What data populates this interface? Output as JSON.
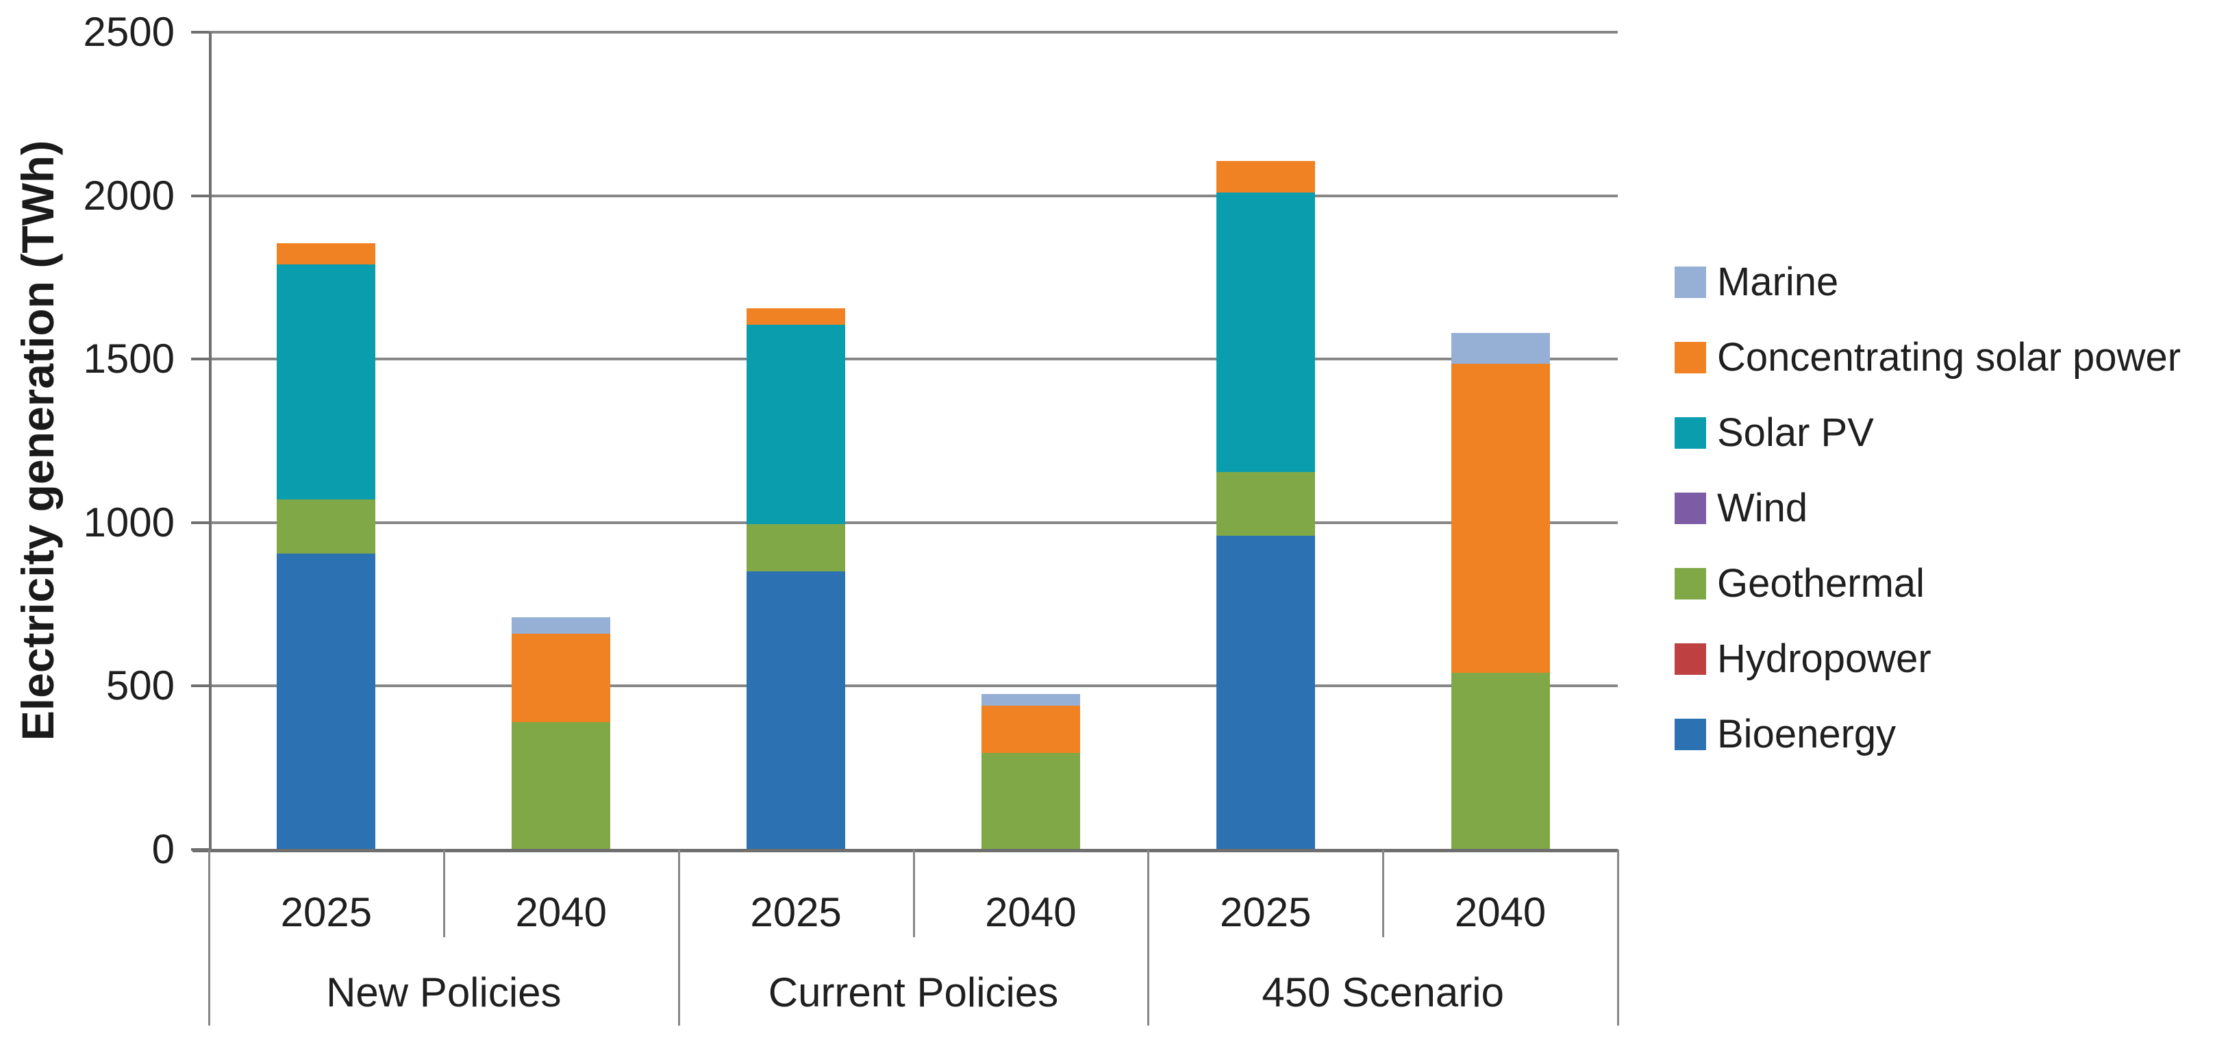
{
  "chart_data": {
    "type": "bar",
    "stacked": true,
    "title": "",
    "ylabel": "Electricity generation (TWh)",
    "xlabel": "",
    "ylim": [
      0,
      2500
    ],
    "y_ticks": [
      0,
      500,
      1000,
      1500,
      2000,
      2500
    ],
    "grid": true,
    "legend_position": "right",
    "groups": [
      {
        "label": "New Policies",
        "years": [
          "2025",
          "2040"
        ]
      },
      {
        "label": "Current Policies",
        "years": [
          "2025",
          "2040"
        ]
      },
      {
        "label": "450 Scenario",
        "years": [
          "2025",
          "2040"
        ]
      }
    ],
    "columns": [
      "New Policies 2025",
      "New Policies 2040",
      "Current Policies 2025",
      "Current Policies 2040",
      "450 Scenario 2025",
      "450 Scenario 2040"
    ],
    "stack_order_bottom_to_top": [
      "Bioenergy",
      "Hydropower",
      "Geothermal",
      "Wind",
      "Solar PV",
      "Concentrating solar power",
      "Marine"
    ],
    "series": [
      {
        "name": "Marine",
        "color": "#95AFD5",
        "values": [
          0,
          50,
          0,
          35,
          0,
          95
        ]
      },
      {
        "name": "Concentrating solar power",
        "color": "#F08223",
        "values": [
          65,
          270,
          50,
          145,
          95,
          945
        ]
      },
      {
        "name": "Solar PV",
        "color": "#0A9DAE",
        "values": [
          720,
          0,
          610,
          0,
          855,
          0
        ]
      },
      {
        "name": "Wind",
        "color": "#7D5CA6",
        "values": [
          0,
          0,
          0,
          0,
          0,
          0
        ]
      },
      {
        "name": "Geothermal",
        "color": "#80A847",
        "values": [
          165,
          390,
          145,
          295,
          195,
          540
        ]
      },
      {
        "name": "Hydropower",
        "color": "#BE4040",
        "values": [
          0,
          0,
          0,
          0,
          0,
          0
        ]
      },
      {
        "name": "Bioenergy",
        "color": "#2C72B2",
        "values": [
          905,
          0,
          850,
          0,
          960,
          0
        ]
      }
    ]
  },
  "colors": {
    "gridline": "#878787",
    "axis": "#6F6F6F",
    "text": "#1F1F1F"
  }
}
